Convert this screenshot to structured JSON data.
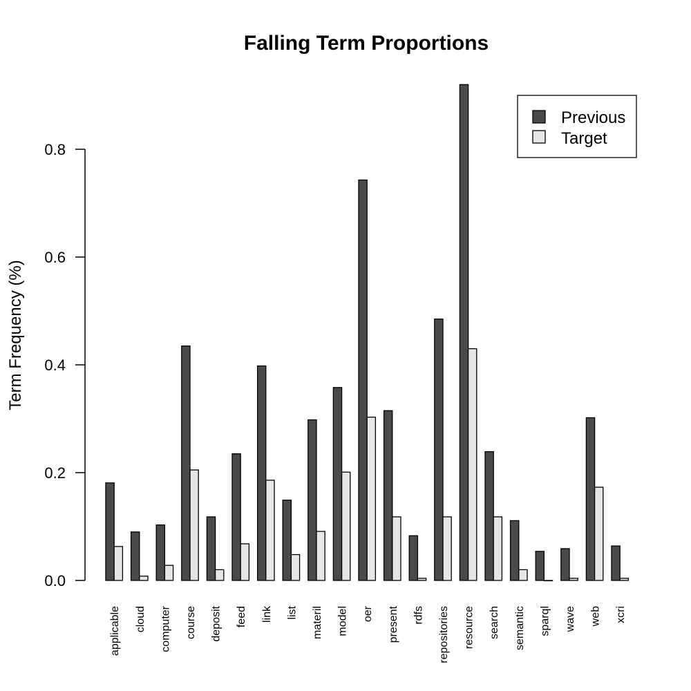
{
  "chart_data": {
    "type": "bar",
    "title": "Falling Term Proportions",
    "xlabel": "",
    "ylabel": "Term Frequency (%)",
    "ylim": [
      0,
      0.92
    ],
    "yticks": [
      "0.0",
      "0.2",
      "0.4",
      "0.6",
      "0.8"
    ],
    "ytick_values": [
      0,
      0.2,
      0.4,
      0.6,
      0.8
    ],
    "grid": false,
    "legend_position": "top-right",
    "categories": [
      "applicable",
      "cloud",
      "computer",
      "course",
      "deposit",
      "feed",
      "link",
      "list",
      "materil",
      "model",
      "oer",
      "present",
      "rdfs",
      "repositories",
      "resource",
      "search",
      "semantic",
      "sparql",
      "wave",
      "web",
      "xcri"
    ],
    "series": [
      {
        "name": "Previous",
        "color": "#4a4a4a",
        "values": [
          0.181,
          0.09,
          0.103,
          0.435,
          0.118,
          0.235,
          0.398,
          0.149,
          0.298,
          0.358,
          0.743,
          0.315,
          0.083,
          0.485,
          0.92,
          0.239,
          0.111,
          0.054,
          0.059,
          0.302,
          0.064
        ]
      },
      {
        "name": "Target",
        "color": "#e6e6e6",
        "values": [
          0.063,
          0.008,
          0.028,
          0.205,
          0.02,
          0.068,
          0.186,
          0.048,
          0.091,
          0.201,
          0.303,
          0.118,
          0.004,
          0.118,
          0.43,
          0.118,
          0.02,
          0.0,
          0.004,
          0.173,
          0.004
        ]
      }
    ]
  }
}
